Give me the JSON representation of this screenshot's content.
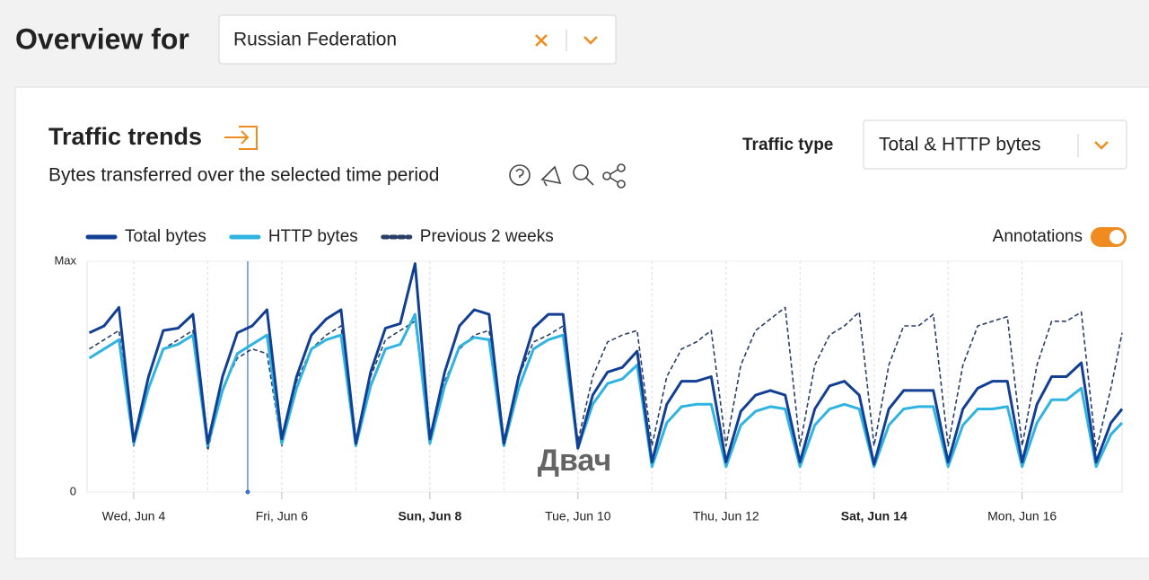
{
  "header": {
    "title": "Overview for",
    "select_value": "Russian Federation"
  },
  "card": {
    "title": "Traffic trends",
    "subtitle": "Bytes transferred over the selected time period",
    "traffic_type_label": "Traffic type",
    "traffic_type_value": "Total & HTTP bytes",
    "annotations_label": "Annotations"
  },
  "watermark": "Двач",
  "chart_data": {
    "type": "line",
    "x": [
      -0.6,
      -0.4,
      -0.2,
      0,
      0.2,
      0.4,
      0.6,
      0.8,
      1,
      1.2,
      1.4,
      1.6,
      1.8,
      2,
      2.2,
      2.4,
      2.6,
      2.8,
      3,
      3.2,
      3.4,
      3.6,
      3.8,
      4,
      4.2,
      4.4,
      4.6,
      4.8,
      5,
      5.2,
      5.4,
      5.6,
      5.8,
      6,
      6.2,
      6.4,
      6.6,
      6.8,
      7,
      7.2,
      7.4,
      7.6,
      7.8,
      8,
      8.2,
      8.4,
      8.6,
      8.8,
      9,
      9.2,
      9.4,
      9.6,
      9.8,
      10,
      10.2,
      10.4,
      10.6,
      10.8,
      11,
      11.2,
      11.4,
      11.6,
      11.8,
      12,
      12.2,
      12.4,
      12.6,
      12.8,
      13,
      13.2,
      13.35
    ],
    "series": [
      {
        "name": "Total bytes",
        "color": "#123f94",
        "dash": false,
        "values": [
          69,
          72,
          80,
          22,
          50,
          70,
          71,
          77,
          21,
          50,
          69,
          72,
          79,
          23,
          50,
          68,
          75,
          79,
          21,
          52,
          71,
          73,
          99,
          23,
          52,
          72,
          79,
          77,
          21,
          50,
          71,
          77,
          77,
          19,
          42,
          52,
          54,
          61,
          13,
          38,
          48,
          48,
          50,
          13,
          35,
          42,
          44,
          42,
          13,
          36,
          46,
          48,
          42,
          12,
          36,
          44,
          44,
          44,
          13,
          36,
          45,
          48,
          48,
          13,
          38,
          50,
          50,
          56,
          13,
          30,
          36
        ]
      },
      {
        "name": "HTTP bytes",
        "color": "#2fb3e0",
        "dash": false,
        "values": [
          58,
          62,
          66,
          21,
          45,
          62,
          64,
          68,
          20,
          44,
          60,
          64,
          68,
          21,
          45,
          62,
          66,
          68,
          20,
          46,
          62,
          64,
          77,
          21,
          46,
          63,
          67,
          66,
          20,
          45,
          62,
          66,
          68,
          19,
          38,
          47,
          49,
          55,
          11,
          30,
          37,
          38,
          38,
          11,
          29,
          35,
          37,
          36,
          11,
          29,
          36,
          38,
          36,
          11,
          29,
          36,
          37,
          37,
          11,
          29,
          36,
          36,
          37,
          11,
          30,
          40,
          40,
          45,
          11,
          25,
          30
        ]
      },
      {
        "name": "Previous 2 weeks",
        "color": "#2a3f66",
        "dash": true,
        "values": [
          62,
          66,
          70,
          20,
          45,
          62,
          66,
          70,
          18,
          45,
          58,
          62,
          60,
          20,
          48,
          62,
          68,
          72,
          20,
          50,
          66,
          70,
          74,
          22,
          48,
          62,
          68,
          70,
          22,
          50,
          65,
          68,
          72,
          22,
          50,
          65,
          68,
          70,
          20,
          50,
          62,
          65,
          70,
          20,
          55,
          70,
          75,
          80,
          20,
          55,
          68,
          72,
          78,
          20,
          55,
          72,
          72,
          77,
          20,
          55,
          72,
          74,
          76,
          20,
          55,
          74,
          74,
          78,
          18,
          45,
          69
        ]
      }
    ],
    "xlim": [
      -0.63,
      13.35
    ],
    "xticks": [
      {
        "value": 0,
        "label": "Wed, Jun 4"
      },
      {
        "value": 1,
        "label": null
      },
      {
        "value": 2,
        "label": "Fri, Jun 6"
      },
      {
        "value": 3,
        "label": null
      },
      {
        "value": 4,
        "label": "Sun, Jun 8"
      },
      {
        "value": 5,
        "label": null
      },
      {
        "value": 6,
        "label": "Tue, Jun 10"
      },
      {
        "value": 7,
        "label": null
      },
      {
        "value": 8,
        "label": "Thu, Jun 12"
      },
      {
        "value": 9,
        "label": null
      },
      {
        "value": 10,
        "label": "Sat, Jun 14"
      },
      {
        "value": 11,
        "label": null
      },
      {
        "value": 12,
        "label": "Mon, Jun 16"
      }
    ],
    "ylim": [
      0,
      100
    ],
    "yticks": [
      0,
      {
        "value": 100,
        "label": "Max"
      }
    ],
    "annotation_lines": [
      1.54
    ],
    "grid": true
  }
}
